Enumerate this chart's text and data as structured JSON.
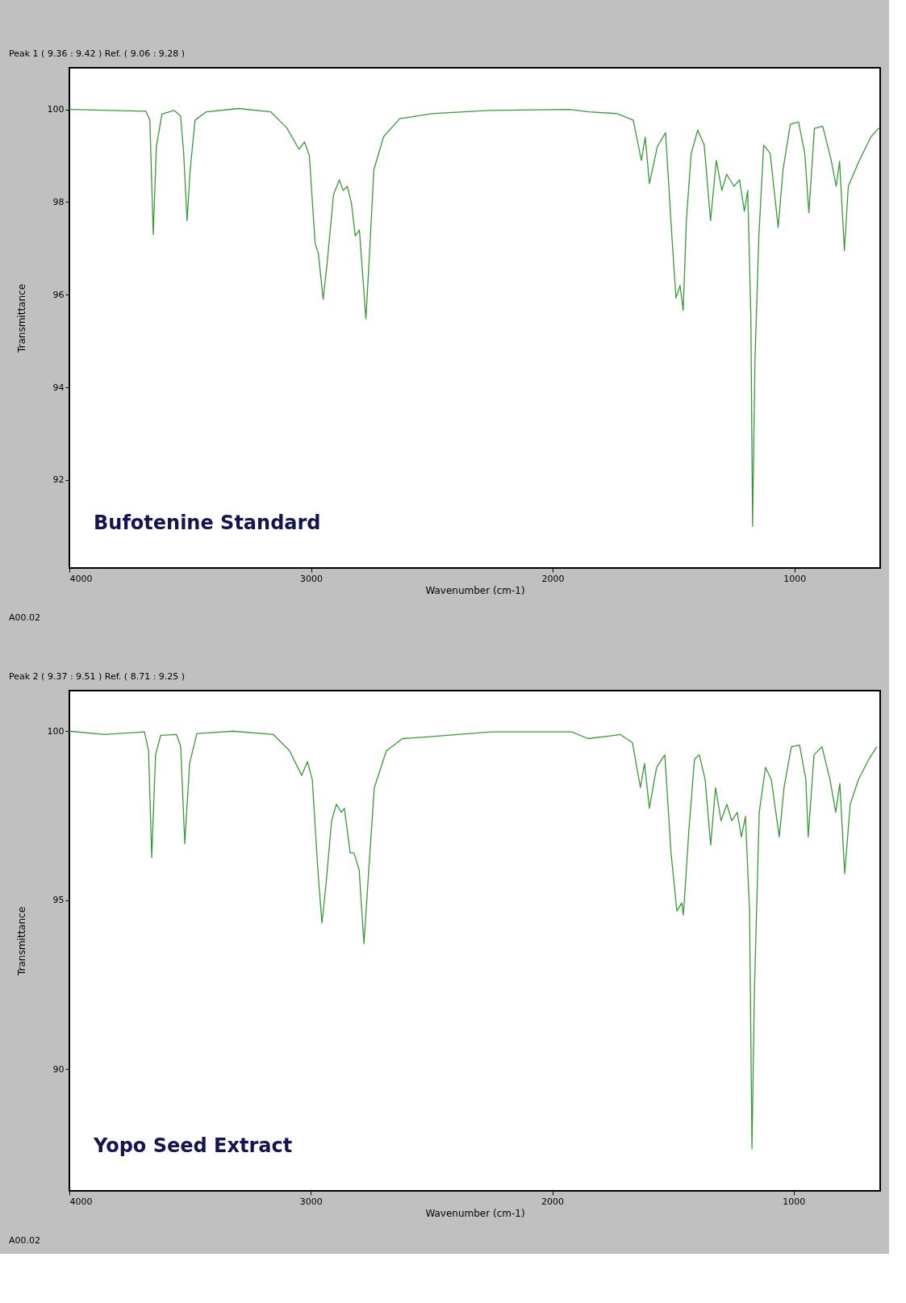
{
  "chart_data": [
    {
      "type": "line",
      "title": "Peak 1 ( 9.36 : 9.42 )  Ref. ( 9.06 : 9.28 )",
      "xlabel": "Wavenumber (cm-1)",
      "ylabel": "Transmittance",
      "annotations": [
        "Bufotenine Standard",
        "A00.02"
      ],
      "xlim": [
        4000,
        645
      ],
      "xticks": [
        4000,
        3000,
        2000,
        1000
      ],
      "ylim": [
        90.1,
        100.9
      ],
      "yticks": [
        92,
        94,
        96,
        98,
        100
      ],
      "grid": false,
      "line_style": "solid",
      "x": [
        4000,
        3683,
        3667,
        3653,
        3640,
        3617,
        3567,
        3540,
        3527,
        3513,
        3500,
        3480,
        3433,
        3300,
        3167,
        3100,
        3050,
        3027,
        3007,
        2983,
        2970,
        2950,
        2933,
        2907,
        2883,
        2867,
        2850,
        2833,
        2817,
        2800,
        2773,
        2760,
        2740,
        2700,
        2633,
        2500,
        2267,
        1933,
        1850,
        1733,
        1667,
        1633,
        1617,
        1600,
        1567,
        1533,
        1507,
        1490,
        1473,
        1460,
        1447,
        1427,
        1400,
        1373,
        1347,
        1323,
        1300,
        1280,
        1250,
        1227,
        1207,
        1193,
        1180,
        1173,
        1163,
        1147,
        1127,
        1100,
        1067,
        1047,
        1017,
        983,
        957,
        940,
        917,
        883,
        850,
        827,
        813,
        793,
        777,
        733,
        683,
        650
      ],
      "series": [
        {
          "color": "#3a9a3a",
          "values": [
            100,
            99.96,
            99.77,
            97.3,
            99.2,
            99.9,
            99.98,
            99.86,
            99.05,
            97.6,
            98.7,
            99.77,
            99.95,
            100.02,
            99.95,
            99.6,
            99.14,
            99.3,
            99.0,
            97.1,
            96.9,
            95.9,
            96.7,
            98.16,
            98.48,
            98.25,
            98.34,
            97.98,
            97.27,
            97.4,
            95.48,
            96.7,
            98.7,
            99.41,
            99.8,
            99.91,
            99.98,
            100,
            99.95,
            99.91,
            99.77,
            98.9,
            99.4,
            98.4,
            99.2,
            99.5,
            97.27,
            95.93,
            96.2,
            95.66,
            97.6,
            99.05,
            99.55,
            99.23,
            97.6,
            98.9,
            98.25,
            98.6,
            98.34,
            98.48,
            97.8,
            98.25,
            95.48,
            91.0,
            94.6,
            97.27,
            99.23,
            99.05,
            97.45,
            98.7,
            99.68,
            99.73,
            99.05,
            97.77,
            99.59,
            99.64,
            98.96,
            98.34,
            98.88,
            96.95,
            98.34,
            98.88,
            99.41,
            99.6
          ]
        }
      ]
    },
    {
      "type": "line",
      "title": "Peak 2 ( 9.37 : 9.51 )  Ref. ( 8.71 : 9.25 )",
      "xlabel": "Wavenumber (cm-1)",
      "ylabel": "Transmittance",
      "annotations": [
        "Yopo Seed Extract",
        "A00.02"
      ],
      "xlim": [
        4000,
        642
      ],
      "xticks": [
        4000,
        3000,
        2000,
        1000
      ],
      "ylim": [
        86.4,
        101.2
      ],
      "yticks": [
        90,
        95,
        100
      ],
      "grid": false,
      "line_style": "solid",
      "x": [
        4000,
        3856,
        3689,
        3672,
        3659,
        3643,
        3622,
        3556,
        3539,
        3522,
        3502,
        3472,
        3322,
        3155,
        3088,
        3038,
        3014,
        2994,
        2971,
        2954,
        2938,
        2914,
        2894,
        2874,
        2861,
        2837,
        2821,
        2800,
        2780,
        2760,
        2737,
        2687,
        2620,
        2520,
        2253,
        1919,
        1852,
        1718,
        1668,
        1635,
        1618,
        1598,
        1568,
        1534,
        1508,
        1484,
        1464,
        1457,
        1434,
        1411,
        1391,
        1367,
        1344,
        1324,
        1301,
        1277,
        1257,
        1234,
        1217,
        1200,
        1183,
        1173,
        1163,
        1143,
        1117,
        1093,
        1060,
        1040,
        1010,
        976,
        950,
        940,
        916,
        883,
        850,
        826,
        809,
        789,
        766,
        732,
        689,
        656
      ],
      "series": [
        {
          "color": "#3a9a3a",
          "values": [
            100,
            99.9,
            99.98,
            99.42,
            96.26,
            99.3,
            99.88,
            99.9,
            99.54,
            96.67,
            99.05,
            99.93,
            100,
            99.9,
            99.42,
            98.69,
            99.1,
            98.57,
            95.9,
            94.32,
            95.4,
            97.35,
            97.84,
            97.6,
            97.72,
            96.4,
            96.4,
            95.9,
            93.71,
            95.9,
            98.33,
            99.42,
            99.78,
            99.83,
            99.98,
            99.98,
            99.78,
            99.9,
            99.66,
            98.33,
            99.05,
            97.72,
            98.93,
            99.3,
            96.38,
            94.68,
            94.92,
            94.56,
            97.1,
            99.17,
            99.3,
            98.57,
            96.63,
            98.33,
            97.35,
            97.84,
            97.35,
            97.6,
            96.87,
            97.48,
            94.68,
            87.65,
            92.26,
            97.6,
            98.93,
            98.57,
            96.87,
            98.33,
            99.54,
            99.59,
            98.57,
            96.87,
            99.3,
            99.54,
            98.57,
            97.6,
            98.45,
            95.78,
            97.84,
            98.57,
            99.17,
            99.54
          ]
        }
      ]
    }
  ]
}
